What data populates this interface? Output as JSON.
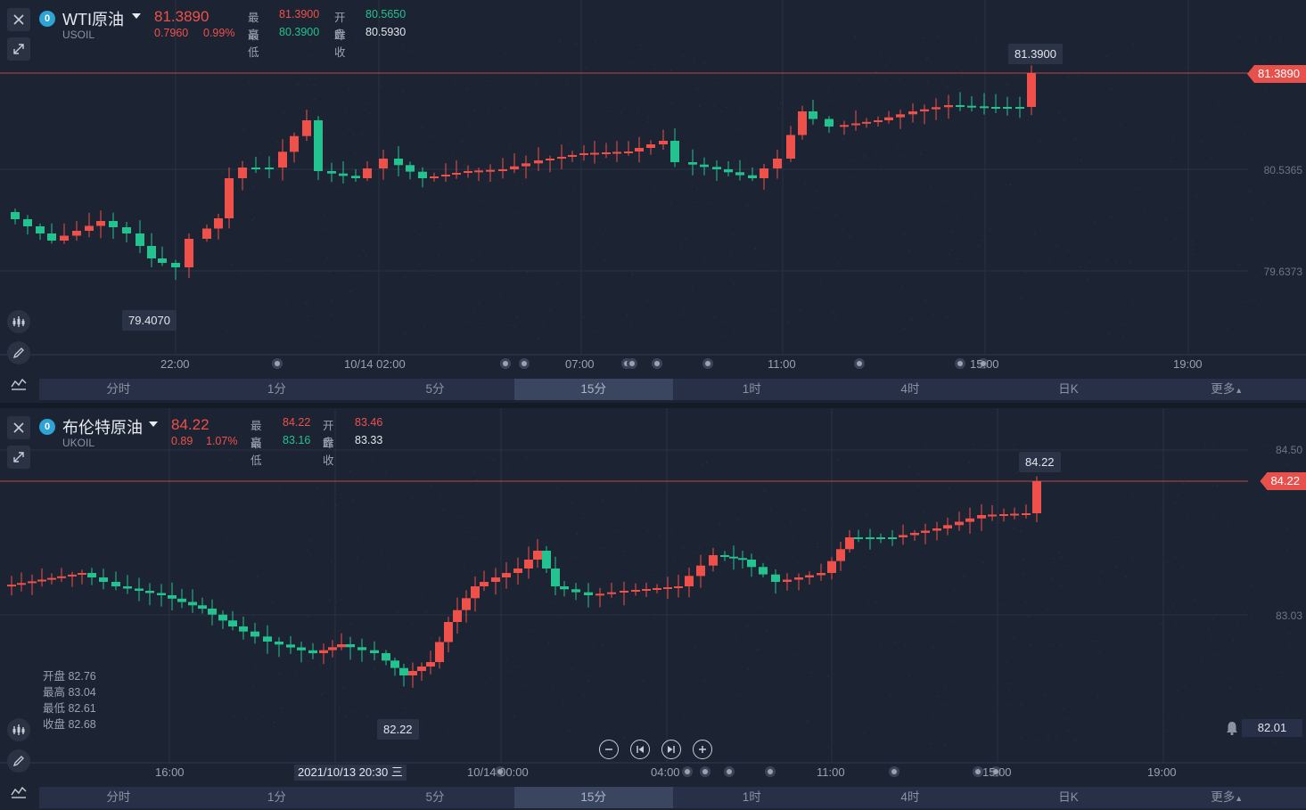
{
  "colors": {
    "up": "#f0504a",
    "down": "#22c38e",
    "bg": "#1c2333",
    "grid": "#2a3244",
    "accent": "#2ea3d6"
  },
  "timeframes": [
    "分时",
    "1分",
    "5分",
    "15分",
    "1时",
    "4时",
    "日K",
    "更多"
  ],
  "active_timeframe": "15分",
  "panel1": {
    "symbol_name": "WTI原油",
    "symbol_code": "USOIL",
    "last_price": "81.3890",
    "change": "0.7960",
    "change_pct": "0.99%",
    "high_label": "最高",
    "high": "81.3900",
    "open_label": "开盘",
    "open": "80.5650",
    "low_label": "最低",
    "low": "80.3900",
    "prev_label": "昨收",
    "prev_close": "80.5930",
    "price_tag": "81.3890",
    "axis_labels": [
      "80.5365",
      "79.6373"
    ],
    "tip_high": "81.3900",
    "tip_low": "79.4070",
    "time_labels": [
      "22:00",
      "10/14 02:00",
      "07:00",
      "11:00",
      "15:00",
      "19:00"
    ]
  },
  "panel2": {
    "symbol_name": "布伦特原油",
    "symbol_code": "UKOIL",
    "last_price": "84.22",
    "change": "0.89",
    "change_pct": "1.07%",
    "high_label": "最高",
    "high": "84.22",
    "open_label": "开盘",
    "open": "83.46",
    "low_label": "最低",
    "low": "83.16",
    "prev_label": "昨收",
    "prev_close": "83.33",
    "price_tag": "84.22",
    "axis_labels": [
      "84.50",
      "83.03"
    ],
    "tip_high": "84.22",
    "tip_low": "82.22",
    "alert_value": "82.01",
    "cursor_date": "2021/10/13 20:30 三",
    "ohlc": {
      "open": "开盘 82.76",
      "high": "最高 83.04",
      "low": "最低 82.61",
      "close": "收盘 82.68"
    },
    "time_labels": [
      "16:00",
      "10/14 00:00",
      "04:00",
      "11:00",
      "15:00",
      "19:00"
    ]
  }
}
